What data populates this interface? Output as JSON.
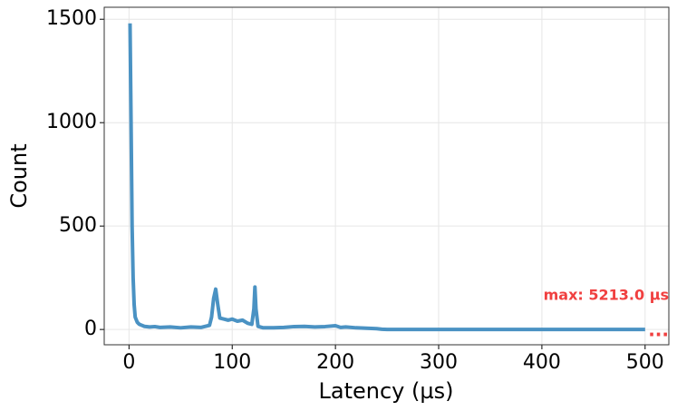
{
  "chart_data": {
    "type": "line",
    "x_label": "Latency (µs)",
    "y_label": "Count",
    "x": [
      1,
      2,
      3,
      4,
      5,
      6,
      8,
      10,
      15,
      20,
      25,
      30,
      40,
      50,
      60,
      70,
      78,
      80,
      82,
      84,
      86,
      88,
      92,
      96,
      100,
      105,
      110,
      115,
      119,
      121,
      122,
      123,
      125,
      130,
      140,
      150,
      160,
      170,
      180,
      190,
      200,
      205,
      210,
      220,
      230,
      240,
      245,
      250,
      300,
      400,
      500
    ],
    "series": [
      {
        "name": "Count",
        "color": "#4a92c3",
        "values": [
          1480,
          1000,
          500,
          250,
          120,
          60,
          35,
          25,
          15,
          12,
          14,
          10,
          12,
          8,
          12,
          10,
          20,
          60,
          150,
          195,
          120,
          55,
          50,
          45,
          50,
          40,
          45,
          30,
          25,
          100,
          205,
          100,
          15,
          8,
          8,
          10,
          14,
          15,
          12,
          14,
          18,
          10,
          12,
          8,
          6,
          4,
          1,
          0,
          0,
          0,
          0
        ]
      }
    ],
    "xlim": [
      -24,
      523
    ],
    "ylim": [
      -74,
      1558
    ],
    "xticks": [
      0,
      100,
      200,
      300,
      400,
      500
    ],
    "yticks": [
      0,
      500,
      1000,
      1500
    ],
    "grid": true,
    "annotations": [
      "max: 5213.0 µs",
      "..."
    ]
  }
}
